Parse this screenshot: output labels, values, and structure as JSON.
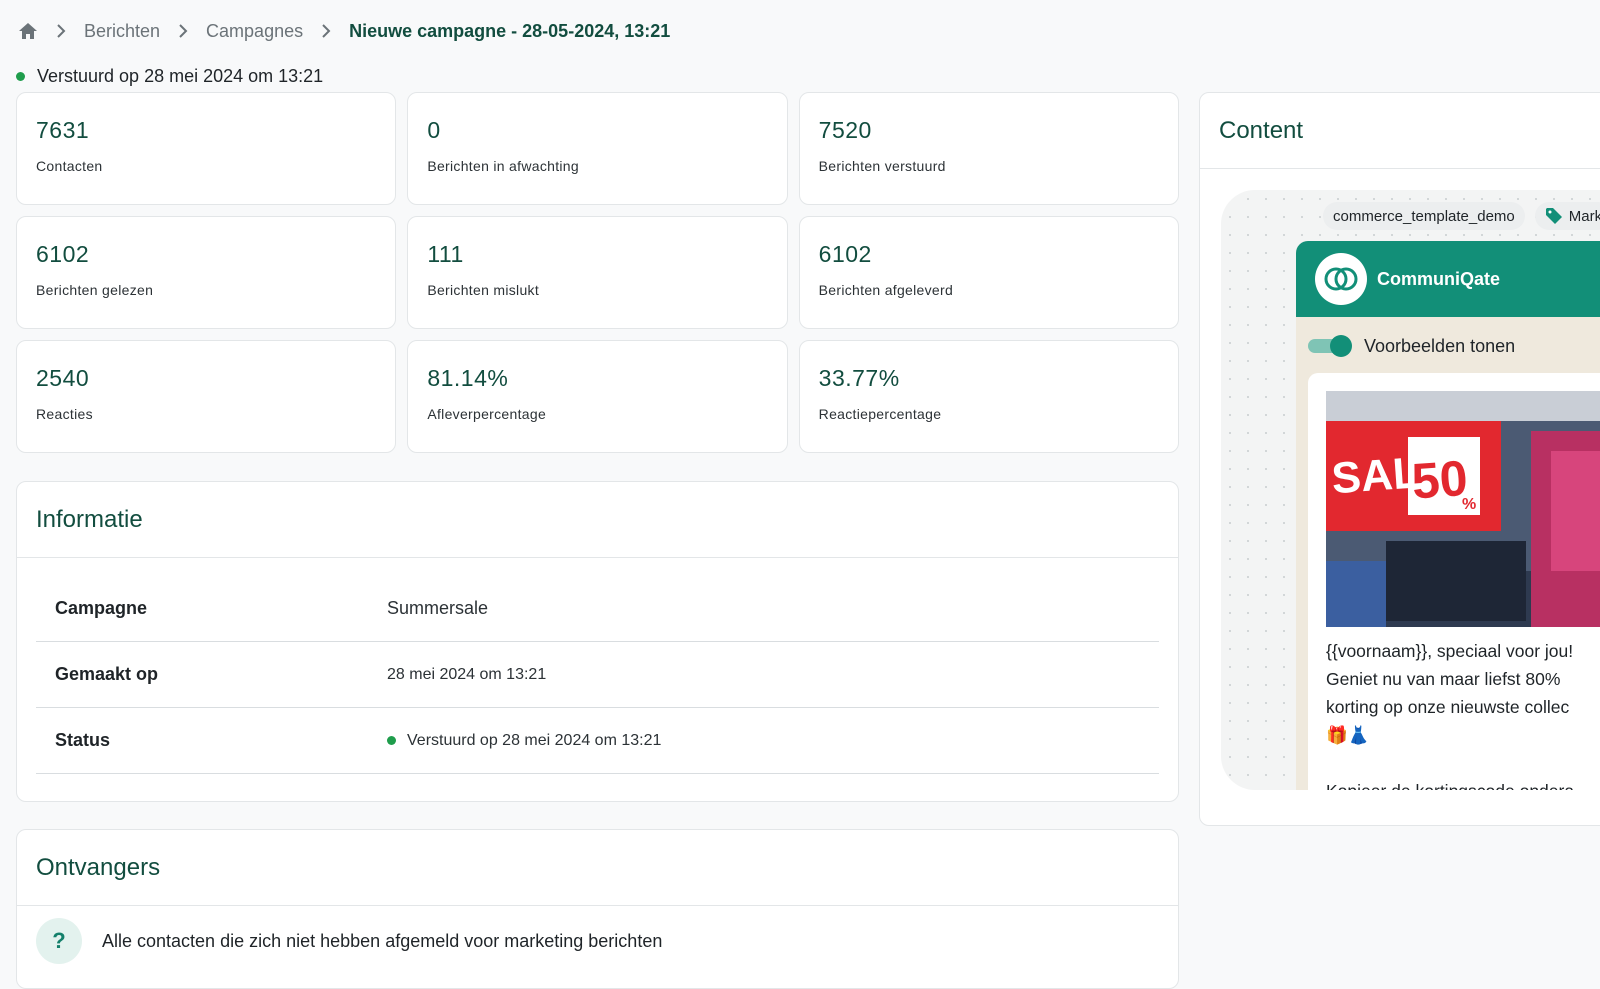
{
  "breadcrumb": {
    "items": [
      "Berichten",
      "Campagnes"
    ],
    "current": "Nieuwe campagne - 28-05-2024, 13:21"
  },
  "status": {
    "text": "Verstuurd op 28 mei 2024 om 13:21",
    "color": "#1f9d4c"
  },
  "stats": [
    {
      "value": "7631",
      "label": "Contacten"
    },
    {
      "value": "0",
      "label": "Berichten in afwachting"
    },
    {
      "value": "7520",
      "label": "Berichten verstuurd"
    },
    {
      "value": "6102",
      "label": "Berichten gelezen"
    },
    {
      "value": "111",
      "label": "Berichten mislukt"
    },
    {
      "value": "6102",
      "label": "Berichten afgeleverd"
    },
    {
      "value": "2540",
      "label": "Reacties"
    },
    {
      "value": "81.14%",
      "label": "Afleverpercentage"
    },
    {
      "value": "33.77%",
      "label": "Reactiepercentage"
    }
  ],
  "info": {
    "title": "Informatie",
    "rows": [
      {
        "key": "Campagne",
        "value": "Summersale"
      },
      {
        "key": "Gemaakt op",
        "value": "28 mei 2024 om 13:21"
      },
      {
        "key": "Status",
        "value": "Verstuurd op 28 mei 2024 om 13:21"
      }
    ]
  },
  "recipients": {
    "title": "Ontvangers",
    "icon": "question-icon",
    "text": "Alle contacten die zich niet hebben afgemeld voor marketing berichten"
  },
  "content": {
    "title": "Content",
    "template_tag": "commerce_template_demo",
    "category_tag": "Mark",
    "sender": "CommuniQate",
    "toggle_label": "Voorbeelden tonen",
    "toggle_on": true,
    "image": {
      "sale_text": "SALE",
      "percent": "50",
      "percent_sign": "%"
    },
    "message": "{{voornaam}}, speciaal voor jou!\nGeniet nu van maar liefst 80%\nkorting op onze nieuwste collec\n🎁👗\n\nKopieer de kortingscode ondera"
  },
  "colors": {
    "primary": "#124d3f",
    "brand": "#128f78",
    "accent_green": "#1f9d4c"
  }
}
